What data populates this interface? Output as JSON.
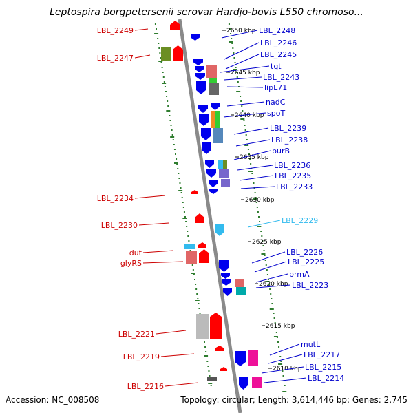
{
  "title": "Leptospira borgpetersenii serovar Hardjo-bovis L550 chromoso...",
  "footer": {
    "accession": "Accession: NC_008508",
    "topology": "Topology: circular; Length: 3,614,446 bp; Genes: 2,745"
  },
  "colors": {
    "backbone": "#8a8a8a",
    "dots": "#2f7d2f",
    "reverse_label": "#cc0000",
    "forward_label": "#0000cc",
    "highlight_label": "#33bbee"
  },
  "scale_labels": [
    "2650 kbp",
    "2645 kbp",
    "2640 kbp",
    "2635 kbp",
    "2630 kbp",
    "2625 kbp",
    "2620 kbp",
    "2615 kbp",
    "2610 kbp"
  ],
  "reverse_genes": [
    "LBL_2249",
    "LBL_2247",
    "LBL_2234",
    "LBL_2230",
    "dut",
    "glyRS",
    "LBL_2221",
    "LBL_2219",
    "LBL_2216"
  ],
  "forward_genes": [
    "LBL_2248",
    "LBL_2246",
    "LBL_2245",
    "tgt",
    "LBL_2243",
    "lipL71",
    "nadC",
    "spoT",
    "LBL_2239",
    "LBL_2238",
    "purB",
    "LBL_2236",
    "LBL_2235",
    "LBL_2233",
    "LBL_2229",
    "LBL_2226",
    "LBL_2225",
    "prmA",
    "LBL_2223",
    "mutL",
    "LBL_2217",
    "LBL_2215",
    "LBL_2214"
  ]
}
